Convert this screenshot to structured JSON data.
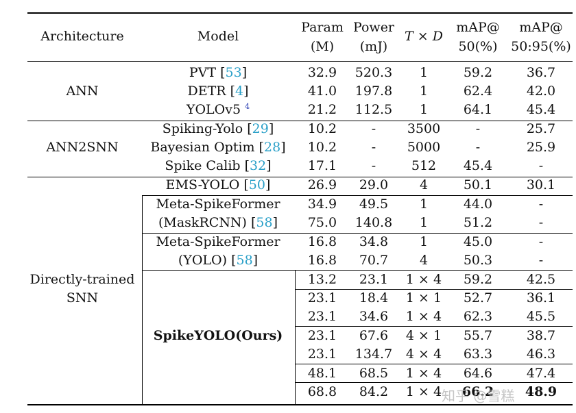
{
  "header": {
    "architecture": "Architecture",
    "model": "Model",
    "param_1": "Param",
    "param_2": "(M)",
    "power_1": "Power",
    "power_2": "(mJ)",
    "td": "T × D",
    "map50_1": "mAP@",
    "map50_2": "50(%)",
    "map5095_1": "mAP@",
    "map5095_2": "50:95(%)"
  },
  "groups": {
    "ann": "ANN",
    "ann2snn": "ANN2SNN",
    "direct_1": "Directly-trained",
    "direct_2": "SNN"
  },
  "models": {
    "pvt": "PVT",
    "pvt_ref": "53",
    "detr": "DETR",
    "detr_ref": "4",
    "yolov5": "YOLOv5",
    "yolov5_ref": "4",
    "spiking_yolo": "Spiking-Yolo",
    "spiking_yolo_ref": "29",
    "bayes": "Bayesian Optim",
    "bayes_ref": "28",
    "spike_calib": "Spike Calib",
    "spike_calib_ref": "32",
    "ems": "EMS-YOLO",
    "ems_ref": "50",
    "msf1_1": "Meta-SpikeFormer",
    "msf1_2": "(MaskRCNN)",
    "msf1_ref": "58",
    "msf2_1": "Meta-SpikeFormer",
    "msf2_2": "(YOLO)",
    "msf2_ref": "58",
    "spikeyolo": "SpikeYOLO(Ours)"
  },
  "rows": [
    [
      "32.9",
      "520.3",
      "1",
      "59.2",
      "36.7"
    ],
    [
      "41.0",
      "197.8",
      "1",
      "62.4",
      "42.0"
    ],
    [
      "21.2",
      "112.5",
      "1",
      "64.1",
      "45.4"
    ],
    [
      "10.2",
      "-",
      "3500",
      "-",
      "25.7"
    ],
    [
      "10.2",
      "-",
      "5000",
      "-",
      "25.9"
    ],
    [
      "17.1",
      "-",
      "512",
      "45.4",
      "-"
    ],
    [
      "26.9",
      "29.0",
      "4",
      "50.1",
      "30.1"
    ],
    [
      "34.9",
      "49.5",
      "1",
      "44.0",
      "-"
    ],
    [
      "75.0",
      "140.8",
      "1",
      "51.2",
      "-"
    ],
    [
      "16.8",
      "34.8",
      "1",
      "45.0",
      "-"
    ],
    [
      "16.8",
      "70.7",
      "4",
      "50.3",
      "-"
    ],
    [
      "13.2",
      "23.1",
      "1 × 4",
      "59.2",
      "42.5"
    ],
    [
      "23.1",
      "18.4",
      "1 × 1",
      "52.7",
      "36.1"
    ],
    [
      "23.1",
      "34.6",
      "1 × 4",
      "62.3",
      "45.5"
    ],
    [
      "23.1",
      "67.6",
      "4 × 1",
      "55.7",
      "38.7"
    ],
    [
      "23.1",
      "134.7",
      "4 × 4",
      "63.3",
      "46.3"
    ],
    [
      "48.1",
      "68.5",
      "1 × 4",
      "64.6",
      "47.4"
    ],
    [
      "68.8",
      "84.2",
      "1 × 4",
      "66.2",
      "48.9"
    ]
  ],
  "watermark": "知乎 @雪糕"
}
